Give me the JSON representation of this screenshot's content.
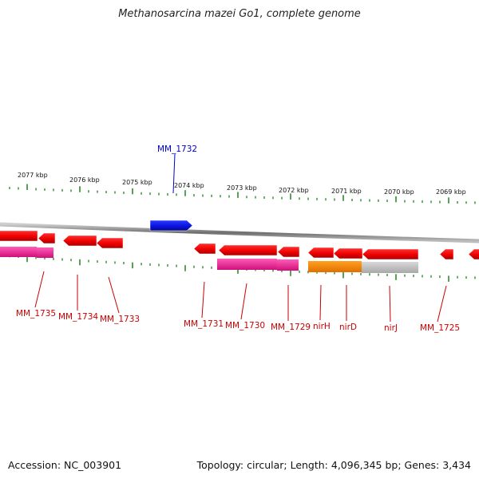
{
  "title": "Methanosarcina mazei Go1, complete genome",
  "accession_text": "Accession: NC_003901",
  "topology_text": "Topology: circular; Length: 4,096,345 bp; Genes: 3,434",
  "colors": {
    "forward_gene": "#0a14e0",
    "reverse_gene": "#ff0000",
    "forward_label": "#0000cc",
    "reverse_label": "#cc0000",
    "ticks": "#2e8b2e",
    "backbone": "#888888",
    "rrna_magenta": "#ff3aa8",
    "feature_orange": "#ff8c00",
    "feature_gray": "#c4c4c4"
  },
  "scale_labels": [
    "2077 kbp",
    "2076 kbp",
    "2075 kbp",
    "2074 kbp",
    "2073 kbp",
    "2072 kbp",
    "2071 kbp",
    "2070 kbp",
    "2069 kbp"
  ],
  "genes": [
    {
      "label": "MM_1732",
      "strand": "forward"
    },
    {
      "label": "MM_1735",
      "strand": "reverse"
    },
    {
      "label": "MM_1734",
      "strand": "reverse"
    },
    {
      "label": "MM_1733",
      "strand": "reverse"
    },
    {
      "label": "MM_1731",
      "strand": "reverse"
    },
    {
      "label": "MM_1730",
      "strand": "reverse"
    },
    {
      "label": "MM_1729",
      "strand": "reverse"
    },
    {
      "label": "nirH",
      "strand": "reverse"
    },
    {
      "label": "nirD",
      "strand": "reverse"
    },
    {
      "label": "nirJ",
      "strand": "reverse"
    },
    {
      "label": "MM_1725",
      "strand": "reverse"
    }
  ]
}
